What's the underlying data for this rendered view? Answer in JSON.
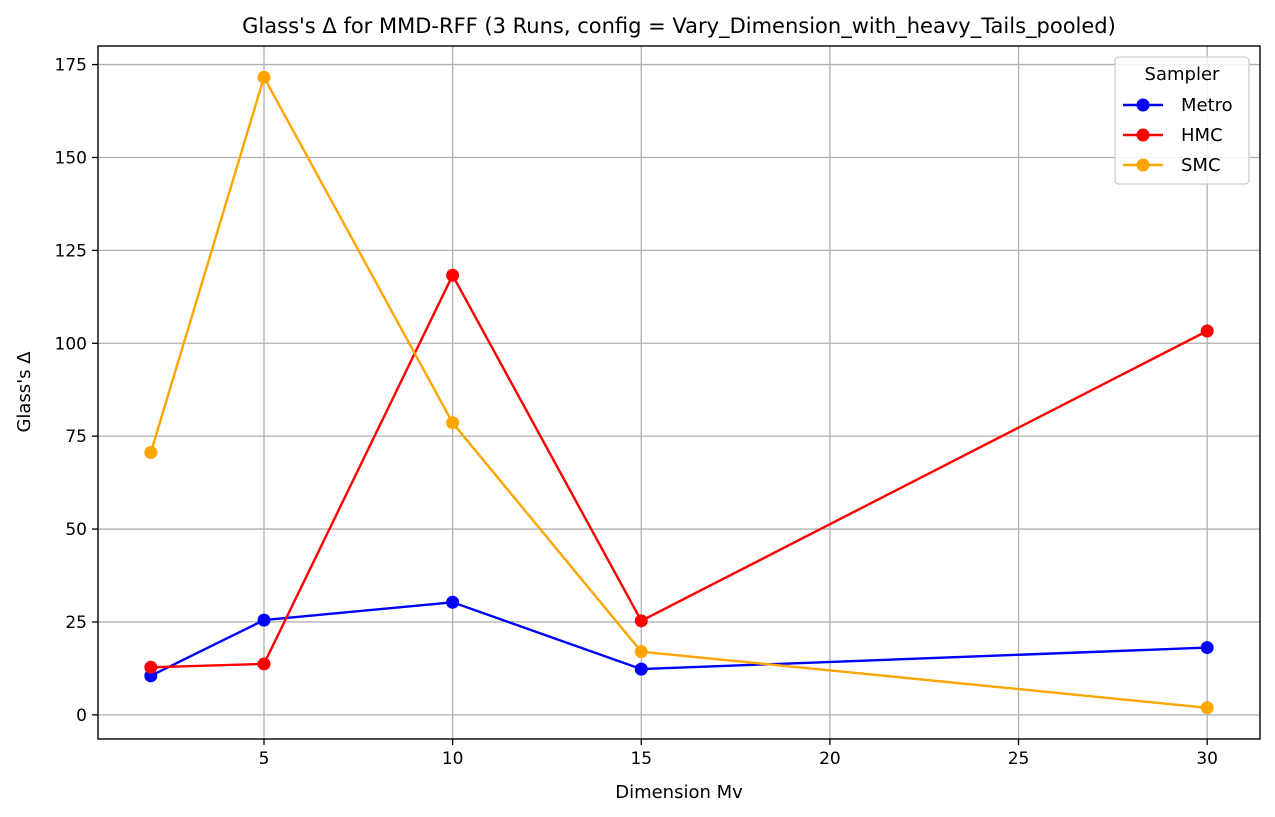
{
  "chart_data": {
    "type": "line",
    "title": "Glass's Δ for MMD-RFF (3 Runs, config = Vary_Dimension_with_heavy_Tails_pooled)",
    "xlabel": "Dimension Mv",
    "ylabel": "Glass's Δ",
    "xlim": [
      0.6,
      31.4
    ],
    "ylim": [
      -6.5,
      180
    ],
    "xticks": [
      5,
      10,
      15,
      20,
      25,
      30
    ],
    "yticks": [
      0,
      25,
      50,
      75,
      100,
      125,
      150,
      175
    ],
    "grid": true,
    "legend": {
      "title": "Sampler",
      "placement": "top-right"
    },
    "series": [
      {
        "name": "Metro",
        "color": "#0000ff",
        "x": [
          2,
          5,
          10,
          15,
          30
        ],
        "y": [
          10.5,
          25.5,
          30.3,
          12.3,
          18.1
        ]
      },
      {
        "name": "HMC",
        "color": "#ff0000",
        "x": [
          2,
          5,
          10,
          15,
          30
        ],
        "y": [
          12.8,
          13.7,
          118.3,
          25.3,
          103.3
        ]
      },
      {
        "name": "SMC",
        "color": "#ffa500",
        "x": [
          2,
          5,
          10,
          15,
          30
        ],
        "y": [
          70.6,
          171.6,
          78.6,
          17.0,
          1.9
        ]
      }
    ]
  }
}
